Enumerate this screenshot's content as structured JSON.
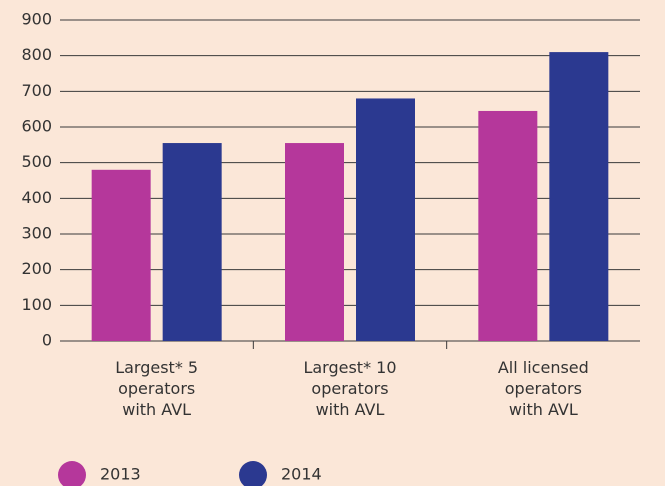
{
  "chart_data": {
    "type": "bar",
    "categories": [
      "Largest* 5 operators with AVL",
      "Largest* 10 operators with AVL",
      "All licensed operators with AVL"
    ],
    "series": [
      {
        "name": "2013",
        "color": "#b5379b",
        "values": [
          480,
          555,
          645
        ]
      },
      {
        "name": "2014",
        "color": "#2b3990",
        "values": [
          555,
          680,
          810
        ]
      }
    ],
    "ylim": [
      0,
      900
    ],
    "yticks": [
      0,
      100,
      200,
      300,
      400,
      500,
      600,
      700,
      800,
      900
    ],
    "grid": true,
    "legend": "bottom"
  }
}
